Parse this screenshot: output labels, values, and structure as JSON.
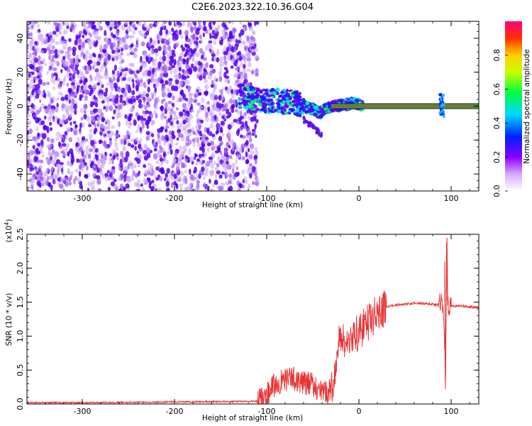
{
  "title": "C2E6.2023.322.10.36.G04",
  "top_panel": {
    "xlabel": "Height of straight line (km)",
    "ylabel": "Frequency (Hz)",
    "colorbar_label": "Normalized spectral amplitude"
  },
  "bottom_panel": {
    "xlabel": "Height of straight line (km)",
    "ylabel": "SNR (10 * v/v)",
    "scale_label": "(x10",
    "scale_exp": "4",
    "scale_close": ")"
  },
  "colors": {
    "line": "#e83030",
    "band": "#00c040",
    "scatter_dense": "#5500ee",
    "scatter_light": "#c8a8f8"
  },
  "chart_data": [
    {
      "type": "scatter",
      "name": "spectrogram",
      "xlim": [
        -360,
        130
      ],
      "ylim": [
        -50,
        50
      ],
      "x_ticks": [
        -300,
        -200,
        -100,
        0,
        100
      ],
      "x_tick_labels": [
        "-300",
        "-200",
        "-100",
        "0",
        "100"
      ],
      "y_ticks": [
        -40,
        -20,
        0,
        20,
        40
      ],
      "y_tick_labels": [
        "-40",
        "-20",
        "0",
        "20",
        "40"
      ],
      "noise_region_x": [
        -360,
        -120
      ],
      "signal_track": [
        {
          "x": -130,
          "y": 6
        },
        {
          "x": -115,
          "y": 4
        },
        {
          "x": -100,
          "y": 3
        },
        {
          "x": -85,
          "y": 3
        },
        {
          "x": -70,
          "y": 2
        },
        {
          "x": -60,
          "y": 0
        },
        {
          "x": -50,
          "y": -2
        },
        {
          "x": -42,
          "y": -4
        },
        {
          "x": -35,
          "y": -1
        },
        {
          "x": -25,
          "y": 0
        },
        {
          "x": -15,
          "y": 1
        },
        {
          "x": -5,
          "y": 2
        },
        {
          "x": 5,
          "y": 0
        }
      ],
      "carrier_line": {
        "y": 0,
        "x_start": -30,
        "x_end": 130
      },
      "spike_x": 90,
      "colorbar": {
        "range": [
          0.0,
          1.0
        ],
        "ticks": [
          0.0,
          0.2,
          0.4,
          0.6,
          0.8
        ],
        "tick_labels": [
          "0.0",
          "0.2",
          "0.4",
          "0.6",
          "0.8"
        ]
      }
    },
    {
      "type": "line",
      "name": "snr",
      "xlim": [
        -360,
        130
      ],
      "ylim": [
        0,
        2.5
      ],
      "x_ticks": [
        -300,
        -200,
        -100,
        0,
        100
      ],
      "x_tick_labels": [
        "-300",
        "-200",
        "-100",
        "0",
        "100"
      ],
      "y_ticks": [
        0.0,
        0.5,
        1.0,
        1.5,
        2.0,
        2.5
      ],
      "y_tick_labels": [
        "0.0",
        "0.5",
        "1.0",
        "1.5",
        "2.0",
        "2.5"
      ],
      "x": [
        -360,
        -300,
        -200,
        -110,
        -100,
        -90,
        -80,
        -70,
        -60,
        -50,
        -40,
        -30,
        -25,
        -20,
        -15,
        -10,
        -5,
        0,
        10,
        20,
        30,
        40,
        50,
        60,
        70,
        80,
        85,
        88,
        90,
        92,
        94,
        95,
        96,
        97,
        100,
        110,
        120,
        130
      ],
      "y": [
        0.02,
        0.02,
        0.03,
        0.04,
        0.15,
        0.3,
        0.35,
        0.38,
        0.3,
        0.3,
        0.15,
        0.2,
        0.55,
        1.05,
        0.85,
        1.0,
        1.0,
        1.05,
        1.2,
        1.35,
        1.43,
        1.46,
        1.47,
        1.48,
        1.48,
        1.47,
        1.46,
        1.5,
        1.58,
        1.35,
        0.3,
        2.45,
        1.6,
        1.45,
        1.44,
        1.45,
        1.43,
        1.42
      ]
    }
  ]
}
